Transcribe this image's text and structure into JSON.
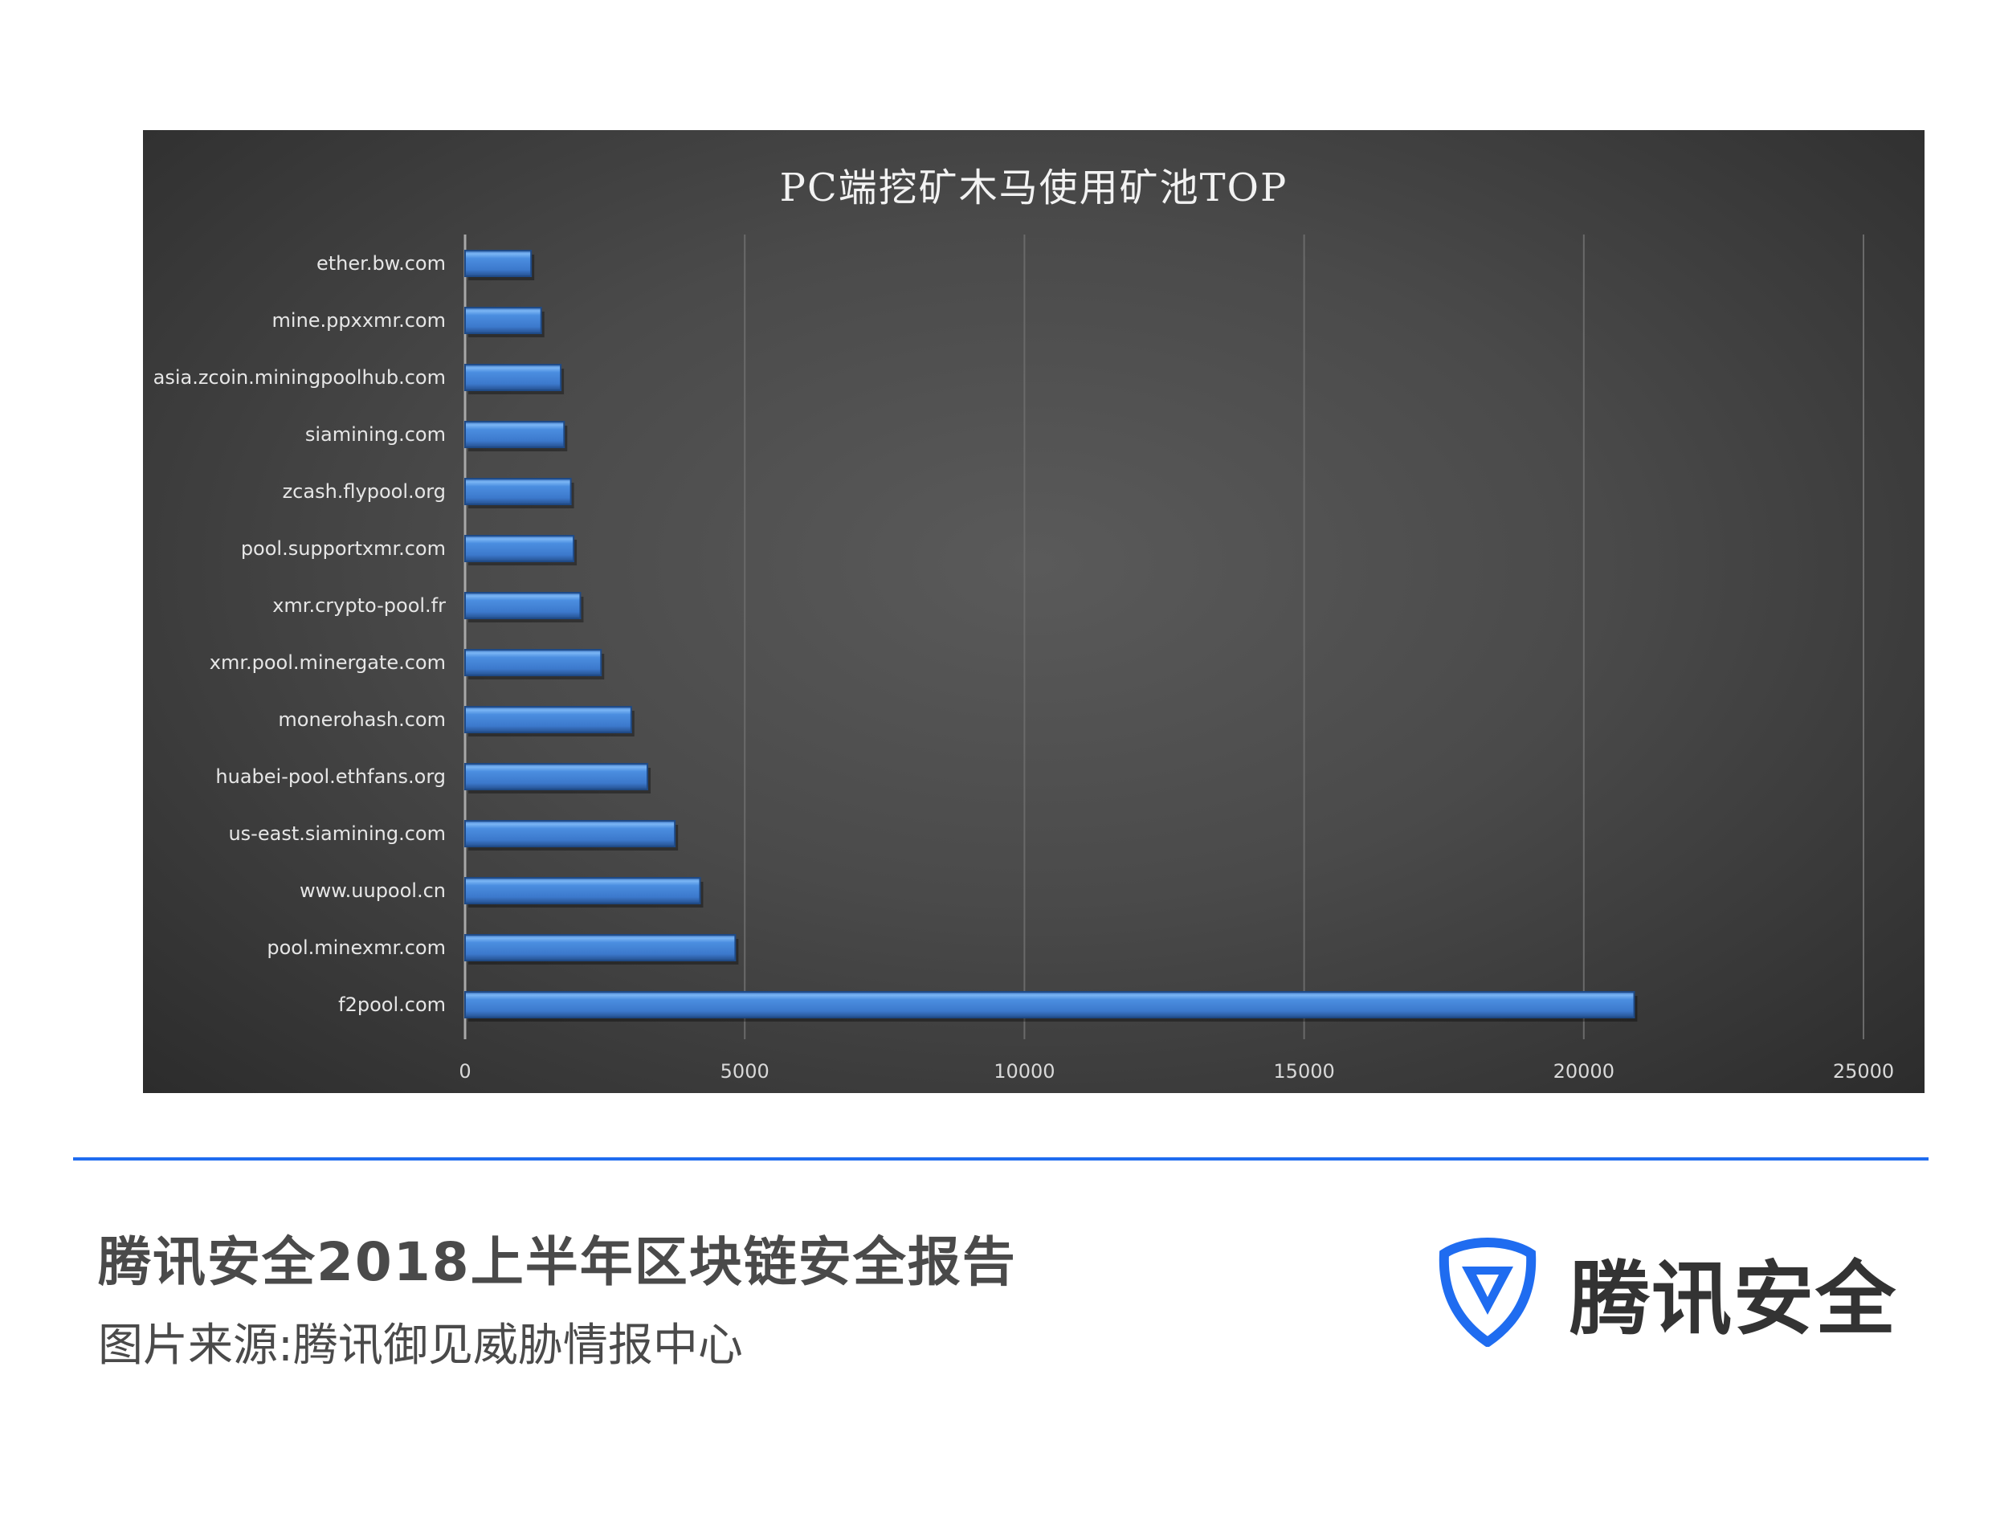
{
  "chart_data": {
    "type": "bar",
    "orientation": "horizontal",
    "title": "PC端挖矿木马使用矿池TOP",
    "categories": [
      "ether.bw.com",
      "mine.ppxxmr.com",
      "asia.zcoin.miningpoolhub.com",
      "siamining.com",
      "zcash.flypool.org",
      "pool.supportxmr.com",
      "xmr.crypto-pool.fr",
      "xmr.pool.minergate.com",
      "monerohash.com",
      "huabei-pool.ethfans.org",
      "us-east.siamining.com",
      "www.uupool.cn",
      "pool.minexmr.com",
      "f2pool.com"
    ],
    "values": [
      1180,
      1360,
      1710,
      1770,
      1890,
      1940,
      2060,
      2430,
      2970,
      3260,
      3750,
      4200,
      4830,
      20900
    ],
    "xlim": [
      0,
      25000
    ],
    "xticks": [
      "0",
      "5000",
      "10000",
      "15000",
      "20000",
      "25000"
    ],
    "xlabel": "",
    "ylabel": "",
    "grid": "vertical",
    "legend": "none",
    "bar_color": "#3f7fd6",
    "background": "dark-gray radial gradient"
  },
  "footer": {
    "report_title": "腾讯安全2018上半年区块链安全报告",
    "source": "图片来源:腾讯御见威胁情报中心",
    "logo_text": "腾讯安全",
    "accent_color": "#1f6cf0"
  }
}
